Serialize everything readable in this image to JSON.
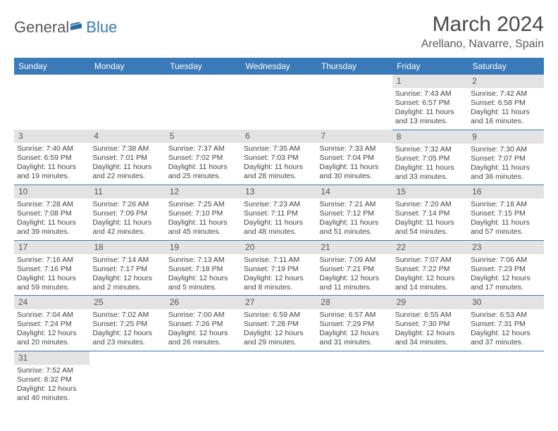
{
  "logo": {
    "text1": "General",
    "text2": "Blue",
    "flag_color": "#2d6aa3"
  },
  "title": "March 2024",
  "location": "Arellano, Navarre, Spain",
  "colors": {
    "header_bg": "#3a7ab8",
    "header_text": "#ffffff",
    "daynum_bg": "#e3e3e3",
    "border": "#3a7ab8",
    "body_text": "#444444"
  },
  "daynames": [
    "Sunday",
    "Monday",
    "Tuesday",
    "Wednesday",
    "Thursday",
    "Friday",
    "Saturday"
  ],
  "weeks": [
    [
      null,
      null,
      null,
      null,
      null,
      {
        "n": "1",
        "sr": "Sunrise: 7:43 AM",
        "ss": "Sunset: 6:57 PM",
        "dl": "Daylight: 11 hours and 13 minutes."
      },
      {
        "n": "2",
        "sr": "Sunrise: 7:42 AM",
        "ss": "Sunset: 6:58 PM",
        "dl": "Daylight: 11 hours and 16 minutes."
      }
    ],
    [
      {
        "n": "3",
        "sr": "Sunrise: 7:40 AM",
        "ss": "Sunset: 6:59 PM",
        "dl": "Daylight: 11 hours and 19 minutes."
      },
      {
        "n": "4",
        "sr": "Sunrise: 7:38 AM",
        "ss": "Sunset: 7:01 PM",
        "dl": "Daylight: 11 hours and 22 minutes."
      },
      {
        "n": "5",
        "sr": "Sunrise: 7:37 AM",
        "ss": "Sunset: 7:02 PM",
        "dl": "Daylight: 11 hours and 25 minutes."
      },
      {
        "n": "6",
        "sr": "Sunrise: 7:35 AM",
        "ss": "Sunset: 7:03 PM",
        "dl": "Daylight: 11 hours and 28 minutes."
      },
      {
        "n": "7",
        "sr": "Sunrise: 7:33 AM",
        "ss": "Sunset: 7:04 PM",
        "dl": "Daylight: 11 hours and 30 minutes."
      },
      {
        "n": "8",
        "sr": "Sunrise: 7:32 AM",
        "ss": "Sunset: 7:05 PM",
        "dl": "Daylight: 11 hours and 33 minutes."
      },
      {
        "n": "9",
        "sr": "Sunrise: 7:30 AM",
        "ss": "Sunset: 7:07 PM",
        "dl": "Daylight: 11 hours and 36 minutes."
      }
    ],
    [
      {
        "n": "10",
        "sr": "Sunrise: 7:28 AM",
        "ss": "Sunset: 7:08 PM",
        "dl": "Daylight: 11 hours and 39 minutes."
      },
      {
        "n": "11",
        "sr": "Sunrise: 7:26 AM",
        "ss": "Sunset: 7:09 PM",
        "dl": "Daylight: 11 hours and 42 minutes."
      },
      {
        "n": "12",
        "sr": "Sunrise: 7:25 AM",
        "ss": "Sunset: 7:10 PM",
        "dl": "Daylight: 11 hours and 45 minutes."
      },
      {
        "n": "13",
        "sr": "Sunrise: 7:23 AM",
        "ss": "Sunset: 7:11 PM",
        "dl": "Daylight: 11 hours and 48 minutes."
      },
      {
        "n": "14",
        "sr": "Sunrise: 7:21 AM",
        "ss": "Sunset: 7:12 PM",
        "dl": "Daylight: 11 hours and 51 minutes."
      },
      {
        "n": "15",
        "sr": "Sunrise: 7:20 AM",
        "ss": "Sunset: 7:14 PM",
        "dl": "Daylight: 11 hours and 54 minutes."
      },
      {
        "n": "16",
        "sr": "Sunrise: 7:18 AM",
        "ss": "Sunset: 7:15 PM",
        "dl": "Daylight: 11 hours and 57 minutes."
      }
    ],
    [
      {
        "n": "17",
        "sr": "Sunrise: 7:16 AM",
        "ss": "Sunset: 7:16 PM",
        "dl": "Daylight: 11 hours and 59 minutes."
      },
      {
        "n": "18",
        "sr": "Sunrise: 7:14 AM",
        "ss": "Sunset: 7:17 PM",
        "dl": "Daylight: 12 hours and 2 minutes."
      },
      {
        "n": "19",
        "sr": "Sunrise: 7:13 AM",
        "ss": "Sunset: 7:18 PM",
        "dl": "Daylight: 12 hours and 5 minutes."
      },
      {
        "n": "20",
        "sr": "Sunrise: 7:11 AM",
        "ss": "Sunset: 7:19 PM",
        "dl": "Daylight: 12 hours and 8 minutes."
      },
      {
        "n": "21",
        "sr": "Sunrise: 7:09 AM",
        "ss": "Sunset: 7:21 PM",
        "dl": "Daylight: 12 hours and 11 minutes."
      },
      {
        "n": "22",
        "sr": "Sunrise: 7:07 AM",
        "ss": "Sunset: 7:22 PM",
        "dl": "Daylight: 12 hours and 14 minutes."
      },
      {
        "n": "23",
        "sr": "Sunrise: 7:06 AM",
        "ss": "Sunset: 7:23 PM",
        "dl": "Daylight: 12 hours and 17 minutes."
      }
    ],
    [
      {
        "n": "24",
        "sr": "Sunrise: 7:04 AM",
        "ss": "Sunset: 7:24 PM",
        "dl": "Daylight: 12 hours and 20 minutes."
      },
      {
        "n": "25",
        "sr": "Sunrise: 7:02 AM",
        "ss": "Sunset: 7:25 PM",
        "dl": "Daylight: 12 hours and 23 minutes."
      },
      {
        "n": "26",
        "sr": "Sunrise: 7:00 AM",
        "ss": "Sunset: 7:26 PM",
        "dl": "Daylight: 12 hours and 26 minutes."
      },
      {
        "n": "27",
        "sr": "Sunrise: 6:59 AM",
        "ss": "Sunset: 7:28 PM",
        "dl": "Daylight: 12 hours and 29 minutes."
      },
      {
        "n": "28",
        "sr": "Sunrise: 6:57 AM",
        "ss": "Sunset: 7:29 PM",
        "dl": "Daylight: 12 hours and 31 minutes."
      },
      {
        "n": "29",
        "sr": "Sunrise: 6:55 AM",
        "ss": "Sunset: 7:30 PM",
        "dl": "Daylight: 12 hours and 34 minutes."
      },
      {
        "n": "30",
        "sr": "Sunrise: 6:53 AM",
        "ss": "Sunset: 7:31 PM",
        "dl": "Daylight: 12 hours and 37 minutes."
      }
    ],
    [
      {
        "n": "31",
        "sr": "Sunrise: 7:52 AM",
        "ss": "Sunset: 8:32 PM",
        "dl": "Daylight: 12 hours and 40 minutes."
      },
      null,
      null,
      null,
      null,
      null,
      null
    ]
  ]
}
